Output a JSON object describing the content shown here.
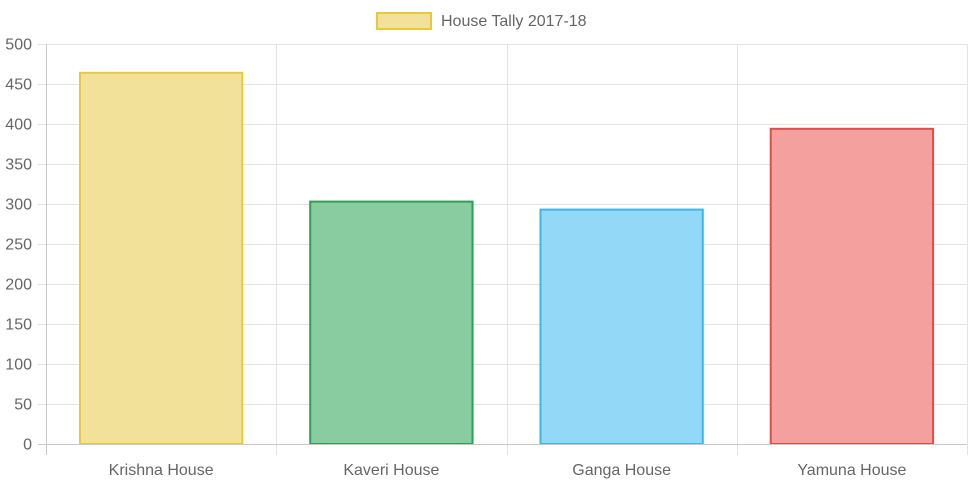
{
  "chart_data": {
    "type": "bar",
    "title": "",
    "xlabel": "",
    "ylabel": "",
    "categories": [
      "Krishna House",
      "Kaveri House",
      "Ganga House",
      "Yamuna House"
    ],
    "series": [
      {
        "name": "House Tally 2017-18",
        "values": [
          464,
          303,
          293,
          394
        ]
      }
    ],
    "colors": {
      "fill": [
        "#f2e299",
        "#88cca0",
        "#93d8f6",
        "#f4a09e"
      ],
      "stroke": [
        "#e8c93c",
        "#2b9e57",
        "#3ab8e8",
        "#e74b46"
      ],
      "legend_fill": "#f2e299",
      "legend_stroke": "#e8c93c",
      "grid": "#e3e3e3",
      "axis": "#c8c8c8",
      "text": "#666666"
    },
    "ylim": [
      0,
      500
    ],
    "yticks": [
      0,
      50,
      100,
      150,
      200,
      250,
      300,
      350,
      400,
      450,
      500
    ],
    "grid": true,
    "legend_position": "top"
  }
}
